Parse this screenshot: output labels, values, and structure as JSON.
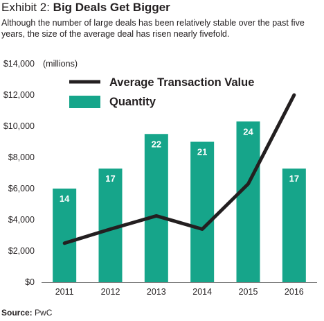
{
  "header": {
    "exhibit": "Exhibit 2:",
    "title": "Big Deals Get Bigger",
    "subtitle": "Although the number of large deals has been relatively stable over the past five years, the size of the average deal has risen nearly fivefold."
  },
  "source": {
    "label": "Source:",
    "value": "PwC"
  },
  "colors": {
    "bar": "#16a58a",
    "line": "#231f20",
    "axis": "#7f7f7f",
    "text": "#231f20",
    "bar_label": "#ffffff"
  },
  "chart_data": {
    "type": "bar",
    "title": "Big Deals Get Bigger",
    "unit_label": "(millions)",
    "categories": [
      "2011",
      "2012",
      "2013",
      "2014",
      "2015",
      "2016"
    ],
    "y_ticks": [
      "$0",
      "$2,000",
      "$4,000",
      "$6,000",
      "$8,000",
      "$10,000",
      "$12,000",
      "$14,000"
    ],
    "ylim": [
      0,
      14000
    ],
    "grid": false,
    "legend_position": "top-left",
    "series": [
      {
        "name": "Quantity",
        "kind": "bar",
        "values": [
          14,
          17,
          22,
          21,
          24,
          17
        ],
        "plotted_values": [
          6000,
          7280,
          9500,
          9000,
          10300,
          7280
        ]
      },
      {
        "name": "Average Transaction Value",
        "kind": "line",
        "values": [
          2500,
          3400,
          4250,
          3400,
          6300,
          12000
        ]
      }
    ]
  }
}
